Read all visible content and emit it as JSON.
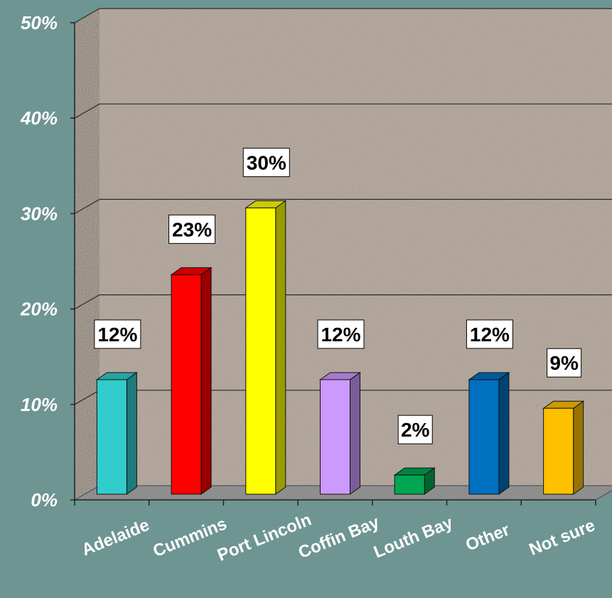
{
  "chart_data": {
    "type": "bar",
    "categories": [
      "Adelaide",
      "Cummins",
      "Port Lincoln",
      "Coffin Bay",
      "Louth Bay",
      "Other",
      "Not sure"
    ],
    "values": [
      12,
      23,
      30,
      12,
      2,
      12,
      9
    ],
    "data_labels": [
      "12%",
      "23%",
      "30%",
      "12%",
      "2%",
      "12%",
      "9%"
    ],
    "ylim": [
      0,
      50
    ],
    "yticks": [
      0,
      10,
      20,
      30,
      40,
      50
    ],
    "ytick_labels": [
      "0%",
      "10%",
      "20%",
      "30%",
      "40%",
      "50%"
    ],
    "grid": true,
    "style": "3d",
    "colors": [
      "#33cccc",
      "#ff0000",
      "#ffff00",
      "#cc99ff",
      "#00a651",
      "#0070c0",
      "#ffc000"
    ]
  }
}
